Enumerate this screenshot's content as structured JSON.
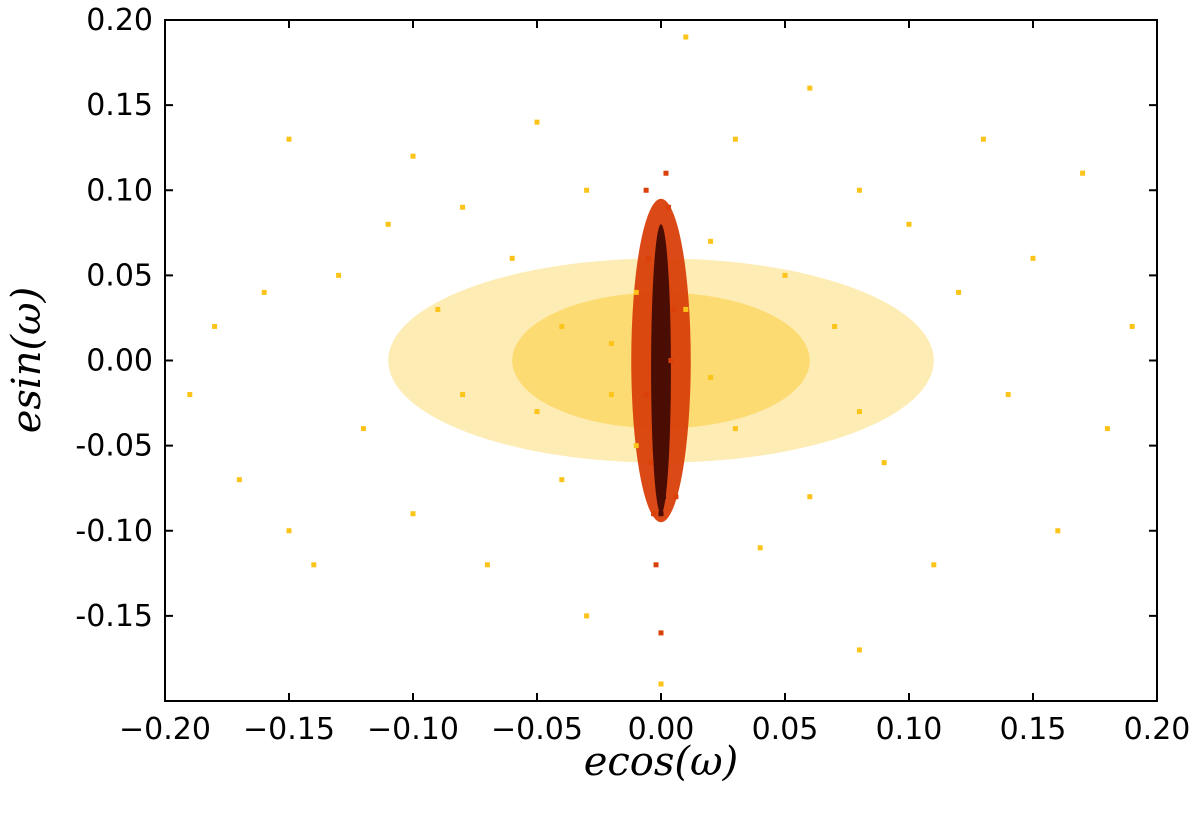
{
  "chart_data": {
    "type": "scatter",
    "title": "",
    "xlabel": "ecos(ω)",
    "ylabel": "esin(ω)",
    "xlim": [
      -0.2,
      0.2
    ],
    "ylim": [
      -0.2,
      0.2
    ],
    "x_ticks": [
      -0.2,
      -0.15,
      -0.1,
      -0.05,
      0.0,
      0.05,
      0.1,
      0.15,
      0.2
    ],
    "x_tick_labels": [
      "−0.20",
      "−0.15",
      "−0.10",
      "−0.05",
      "0.00",
      "0.05",
      "0.10",
      "0.15",
      "0.20"
    ],
    "y_ticks": [
      0.2,
      0.15,
      0.1,
      0.05,
      0.0,
      -0.05,
      -0.1,
      -0.15
    ],
    "y_tick_labels": [
      "0.20",
      "0.15",
      "0.10",
      "0.05",
      "0.00",
      "-0.05",
      "-0.10",
      "-0.15"
    ],
    "grid": false,
    "legend": "none",
    "series": [
      {
        "color": "#fcc419",
        "points": [
          [
            -0.19,
            -0.02
          ],
          [
            -0.18,
            0.02
          ],
          [
            -0.17,
            -0.07
          ],
          [
            -0.16,
            0.04
          ],
          [
            -0.15,
            0.13
          ],
          [
            -0.15,
            -0.1
          ],
          [
            -0.14,
            -0.12
          ],
          [
            -0.13,
            0.05
          ],
          [
            -0.12,
            -0.04
          ],
          [
            -0.11,
            0.08
          ],
          [
            -0.1,
            0.12
          ],
          [
            -0.1,
            -0.09
          ],
          [
            -0.09,
            0.03
          ],
          [
            -0.08,
            -0.02
          ],
          [
            -0.08,
            0.09
          ],
          [
            -0.07,
            -0.12
          ],
          [
            -0.06,
            0.06
          ],
          [
            -0.05,
            0.14
          ],
          [
            -0.05,
            -0.03
          ],
          [
            -0.04,
            0.02
          ],
          [
            -0.04,
            -0.07
          ],
          [
            -0.03,
            0.1
          ],
          [
            -0.03,
            -0.15
          ],
          [
            -0.02,
            0.01
          ],
          [
            -0.02,
            -0.02
          ],
          [
            -0.01,
            0.04
          ],
          [
            -0.01,
            -0.05
          ],
          [
            0.01,
            0.03
          ],
          [
            0.02,
            -0.01
          ],
          [
            0.02,
            0.07
          ],
          [
            0.03,
            -0.04
          ],
          [
            0.03,
            0.13
          ],
          [
            0.04,
            -0.11
          ],
          [
            0.05,
            0.05
          ],
          [
            0.06,
            0.16
          ],
          [
            0.06,
            -0.08
          ],
          [
            0.07,
            0.02
          ],
          [
            0.08,
            -0.03
          ],
          [
            0.08,
            0.1
          ],
          [
            0.09,
            -0.06
          ],
          [
            0.1,
            0.08
          ],
          [
            0.11,
            -0.12
          ],
          [
            0.12,
            0.04
          ],
          [
            0.13,
            0.13
          ],
          [
            0.14,
            -0.02
          ],
          [
            0.15,
            0.06
          ],
          [
            0.16,
            -0.1
          ],
          [
            0.17,
            0.11
          ],
          [
            0.18,
            -0.04
          ],
          [
            0.19,
            0.02
          ],
          [
            0.01,
            0.19
          ],
          [
            -0.0,
            -0.19
          ],
          [
            0.08,
            -0.17
          ]
        ]
      },
      {
        "color": "#d9400a",
        "points": [
          [
            -0.006,
            0.1
          ],
          [
            -0.005,
            0.06
          ],
          [
            -0.004,
            -0.06
          ],
          [
            -0.006,
            -0.02
          ],
          [
            0.005,
            0.03
          ],
          [
            0.006,
            -0.08
          ],
          [
            0.003,
            0.09
          ],
          [
            -0.003,
            -0.09
          ],
          [
            0.004,
            0.0
          ],
          [
            -0.002,
            -0.12
          ],
          [
            0.002,
            0.11
          ],
          [
            0.0,
            -0.16
          ]
        ]
      },
      {
        "color": "#4a0d04",
        "points": [
          [
            0.0,
            0.06
          ],
          [
            0.0,
            0.03
          ],
          [
            0.0,
            0.0
          ],
          [
            0.0,
            -0.03
          ],
          [
            0.0,
            -0.06
          ],
          [
            0.0,
            -0.09
          ],
          [
            0.001,
            0.05
          ],
          [
            -0.001,
            -0.05
          ],
          [
            0.001,
            -0.08
          ],
          [
            -0.001,
            0.02
          ]
        ]
      }
    ]
  }
}
